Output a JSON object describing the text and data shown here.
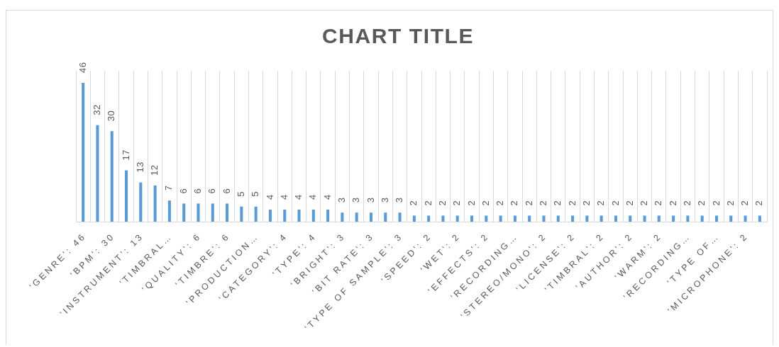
{
  "chart_data": {
    "type": "bar",
    "title": "CHART TITLE",
    "categories": [
      "'GENRE': 46",
      null,
      "'BPM': 30",
      null,
      "'INSTRUMENT': 13",
      null,
      "'TIMBRAL…",
      null,
      "'QUALITY': 6",
      null,
      "'TIMBRE': 6",
      null,
      "'PRODUCTION…",
      null,
      "'CATEGORY': 4",
      null,
      "'TYPE': 4",
      null,
      "'BRIGHT': 3",
      null,
      "'BIT RATE': 3",
      null,
      "'TYPE OF SAMPLE': 3",
      null,
      "'SPEED': 2",
      null,
      "'WET': 2",
      null,
      "'EFFECTS': 2",
      null,
      "'RECORDING…",
      null,
      "'STEREO/MONO': 2",
      null,
      "'LICENSE': 2",
      null,
      "'TIMBRAL': 2",
      null,
      "'AUTHOR': 2",
      null,
      "'WARM': 2",
      null,
      "'RECORDING…",
      null,
      "'TYPE OF…",
      null,
      "'MICROPHONE': 2",
      null
    ],
    "values": [
      46,
      32,
      30,
      17,
      13,
      12,
      7,
      6,
      6,
      6,
      6,
      5,
      5,
      4,
      4,
      4,
      4,
      4,
      3,
      3,
      3,
      3,
      3,
      2,
      2,
      2,
      2,
      2,
      2,
      2,
      2,
      2,
      2,
      2,
      2,
      2,
      2,
      2,
      2,
      2,
      2,
      2,
      2,
      2,
      2,
      2,
      2,
      2
    ],
    "color": "#5b9bd5",
    "data_labels": true,
    "grid": "x"
  }
}
